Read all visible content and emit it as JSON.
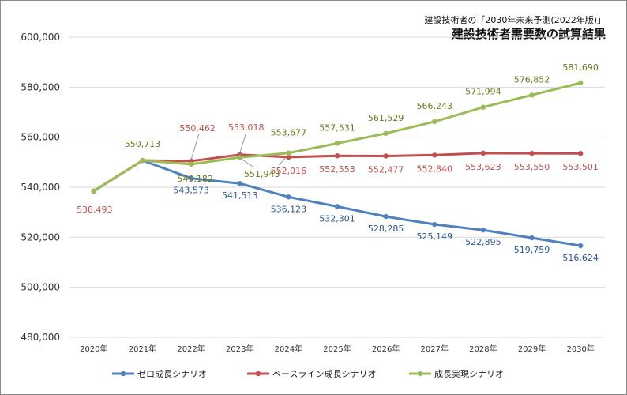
{
  "header": {
    "subtitle": "建設技術者の「2030年未来予測(2022年版)」",
    "title": "建設技術者需要数の試算結果"
  },
  "chart_data": {
    "type": "line",
    "title": "建設技術者需要数の試算結果",
    "subtitle": "建設技術者の「2030年未来予測(2022年版)」",
    "xlabel": "",
    "ylabel": "",
    "categories": [
      "2020年",
      "2021年",
      "2022年",
      "2023年",
      "2024年",
      "2025年",
      "2026年",
      "2027年",
      "2028年",
      "2029年",
      "2030年"
    ],
    "ylim": [
      480000,
      600000
    ],
    "yticks": [
      480000,
      500000,
      520000,
      540000,
      560000,
      580000,
      600000
    ],
    "ytick_labels": [
      "480,000",
      "500,000",
      "520,000",
      "540,000",
      "560,000",
      "580,000",
      "600,000"
    ],
    "grid": "horizontal",
    "legend_position": "bottom",
    "first_point_label": "538,493",
    "series": [
      {
        "name": "ゼロ成長シナリオ",
        "color": "#4f81bd",
        "values": [
          538493,
          550713,
          543573,
          541513,
          536123,
          532301,
          528285,
          525149,
          522895,
          519759,
          516624
        ],
        "labels": [
          null,
          null,
          "543,573",
          "541,513",
          "536,123",
          "532,301",
          "528,285",
          "525,149",
          "522,895",
          "519,759",
          "516,624"
        ]
      },
      {
        "name": "ベースライン成長シナリオ",
        "color": "#c0504d",
        "values": [
          538493,
          550713,
          550462,
          553018,
          552016,
          552553,
          552477,
          552840,
          553623,
          553550,
          553501
        ],
        "labels": [
          null,
          null,
          "550,462",
          "553,018",
          "552,016",
          "552,553",
          "552,477",
          "552,840",
          "553,623",
          "553,550",
          "553,501"
        ]
      },
      {
        "name": "成長実現シナリオ",
        "color": "#9bbb59",
        "values": [
          538493,
          550713,
          549182,
          551943,
          553677,
          557531,
          561529,
          566243,
          571994,
          576852,
          581690
        ],
        "labels": [
          null,
          "550,713",
          "549,182",
          "551,943",
          "553,677",
          "557,531",
          "561,529",
          "566,243",
          "571,994",
          "576,852",
          "581,690"
        ]
      }
    ]
  }
}
